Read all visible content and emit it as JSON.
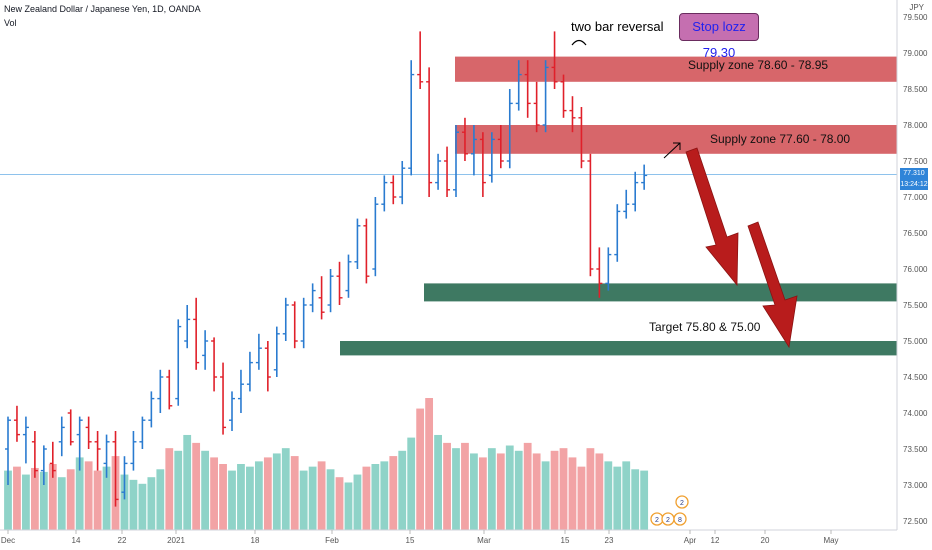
{
  "header": {
    "symbol_title": "New Zealand Dollar / Japanese Yen, 1D, OANDA",
    "volume_label": "Vol",
    "currency": "JPY"
  },
  "price_tag": {
    "price": "77.310",
    "countdown": "13:24:12"
  },
  "annotations": {
    "stop_loss": "Stop lozz 79.30",
    "two_bar_reversal": "two bar reversal",
    "supply_zone_upper": "Supply zone 78.60 - 78.95",
    "supply_zone_lower": "Supply zone 77.60 - 78.00",
    "target": "Target 75.80 & 75.00"
  },
  "event_markers": [
    "2",
    "2",
    "8",
    "2"
  ],
  "colors": {
    "up_bar": "#2a7bd0",
    "down_bar": "#e0202a",
    "vol_up": "#8fd3c8",
    "vol_down": "#f2a3a5",
    "supply_zone": "#cc3b40",
    "target_zone": "#2e6e55",
    "arrow": "#b81c1c",
    "price_line": "#4a9ee0"
  },
  "chart_data": {
    "type": "ohlc_bar",
    "y_axis": {
      "ticks": [
        72.5,
        73.0,
        73.5,
        74.0,
        74.5,
        75.0,
        75.5,
        76.0,
        76.5,
        77.0,
        77.5,
        78.0,
        78.5,
        79.0,
        79.5
      ],
      "tick_labels": [
        "72.500",
        "73.000",
        "73.500",
        "74.000",
        "74.500",
        "75.000",
        "75.500",
        "76.000",
        "76.500",
        "77.000",
        "77.500",
        "78.000",
        "78.500",
        "79.000",
        "79.500"
      ],
      "ylim": [
        72.3,
        79.65
      ]
    },
    "x_axis": {
      "labels": [
        "Dec",
        "14",
        "22",
        "2021",
        "18",
        "Feb",
        "15",
        "Mar",
        "15",
        "23",
        "Apr",
        "12",
        "20",
        "May"
      ]
    },
    "bars": [
      {
        "o": 73.5,
        "h": 73.95,
        "l": 73.0,
        "c": 73.9,
        "v": 0.45
      },
      {
        "o": 73.9,
        "h": 74.1,
        "l": 73.6,
        "c": 73.7,
        "v": 0.48
      },
      {
        "o": 73.7,
        "h": 73.95,
        "l": 73.3,
        "c": 73.8,
        "v": 0.42
      },
      {
        "o": 73.6,
        "h": 73.75,
        "l": 73.1,
        "c": 73.2,
        "v": 0.47
      },
      {
        "o": 73.2,
        "h": 73.55,
        "l": 73.0,
        "c": 73.5,
        "v": 0.44
      },
      {
        "o": 73.3,
        "h": 73.6,
        "l": 73.1,
        "c": 73.2,
        "v": 0.5
      },
      {
        "o": 73.6,
        "h": 73.95,
        "l": 73.4,
        "c": 73.8,
        "v": 0.4
      },
      {
        "o": 74.0,
        "h": 74.05,
        "l": 73.55,
        "c": 73.6,
        "v": 0.46
      },
      {
        "o": 73.7,
        "h": 73.95,
        "l": 73.2,
        "c": 73.9,
        "v": 0.55
      },
      {
        "o": 73.8,
        "h": 73.95,
        "l": 73.5,
        "c": 73.6,
        "v": 0.52
      },
      {
        "o": 73.6,
        "h": 73.75,
        "l": 73.2,
        "c": 73.5,
        "v": 0.45
      },
      {
        "o": 73.3,
        "h": 73.7,
        "l": 73.1,
        "c": 73.6,
        "v": 0.48
      },
      {
        "o": 73.6,
        "h": 73.75,
        "l": 72.7,
        "c": 72.8,
        "v": 0.56
      },
      {
        "o": 72.9,
        "h": 73.4,
        "l": 72.8,
        "c": 73.3,
        "v": 0.42
      },
      {
        "o": 73.3,
        "h": 73.75,
        "l": 73.2,
        "c": 73.6,
        "v": 0.38
      },
      {
        "o": 73.6,
        "h": 73.95,
        "l": 73.5,
        "c": 73.9,
        "v": 0.35
      },
      {
        "o": 73.9,
        "h": 74.3,
        "l": 73.8,
        "c": 74.2,
        "v": 0.4
      },
      {
        "o": 74.2,
        "h": 74.6,
        "l": 74.0,
        "c": 74.5,
        "v": 0.46
      },
      {
        "o": 74.5,
        "h": 74.6,
        "l": 74.05,
        "c": 74.1,
        "v": 0.62
      },
      {
        "o": 74.2,
        "h": 75.3,
        "l": 74.1,
        "c": 75.2,
        "v": 0.6
      },
      {
        "o": 75.0,
        "h": 75.5,
        "l": 74.9,
        "c": 75.3,
        "v": 0.72
      },
      {
        "o": 75.3,
        "h": 75.6,
        "l": 74.6,
        "c": 74.7,
        "v": 0.66
      },
      {
        "o": 74.8,
        "h": 75.15,
        "l": 74.6,
        "c": 75.0,
        "v": 0.6
      },
      {
        "o": 75.0,
        "h": 75.05,
        "l": 74.3,
        "c": 74.5,
        "v": 0.55
      },
      {
        "o": 74.5,
        "h": 74.7,
        "l": 73.7,
        "c": 73.8,
        "v": 0.5
      },
      {
        "o": 73.9,
        "h": 74.3,
        "l": 73.75,
        "c": 74.2,
        "v": 0.45
      },
      {
        "o": 74.2,
        "h": 74.6,
        "l": 74.0,
        "c": 74.4,
        "v": 0.5
      },
      {
        "o": 74.4,
        "h": 74.85,
        "l": 74.3,
        "c": 74.7,
        "v": 0.48
      },
      {
        "o": 74.7,
        "h": 75.1,
        "l": 74.6,
        "c": 74.9,
        "v": 0.52
      },
      {
        "o": 74.9,
        "h": 75.0,
        "l": 74.3,
        "c": 74.5,
        "v": 0.55
      },
      {
        "o": 74.6,
        "h": 75.2,
        "l": 74.5,
        "c": 75.1,
        "v": 0.58
      },
      {
        "o": 75.1,
        "h": 75.6,
        "l": 75.0,
        "c": 75.5,
        "v": 0.62
      },
      {
        "o": 75.5,
        "h": 75.55,
        "l": 74.9,
        "c": 75.0,
        "v": 0.56
      },
      {
        "o": 75.0,
        "h": 75.6,
        "l": 74.9,
        "c": 75.5,
        "v": 0.45
      },
      {
        "o": 75.5,
        "h": 75.8,
        "l": 75.4,
        "c": 75.7,
        "v": 0.48
      },
      {
        "o": 75.6,
        "h": 75.9,
        "l": 75.3,
        "c": 75.4,
        "v": 0.52
      },
      {
        "o": 75.5,
        "h": 76.0,
        "l": 75.4,
        "c": 75.9,
        "v": 0.46
      },
      {
        "o": 75.9,
        "h": 76.1,
        "l": 75.5,
        "c": 75.6,
        "v": 0.4
      },
      {
        "o": 75.7,
        "h": 76.2,
        "l": 75.6,
        "c": 76.1,
        "v": 0.36
      },
      {
        "o": 76.1,
        "h": 76.7,
        "l": 76.0,
        "c": 76.6,
        "v": 0.42
      },
      {
        "o": 76.6,
        "h": 76.7,
        "l": 75.8,
        "c": 75.9,
        "v": 0.48
      },
      {
        "o": 76.0,
        "h": 77.0,
        "l": 75.9,
        "c": 76.9,
        "v": 0.5
      },
      {
        "o": 76.9,
        "h": 77.3,
        "l": 76.8,
        "c": 77.2,
        "v": 0.52
      },
      {
        "o": 77.2,
        "h": 77.3,
        "l": 76.9,
        "c": 77.0,
        "v": 0.56
      },
      {
        "o": 77.0,
        "h": 77.5,
        "l": 76.9,
        "c": 77.4,
        "v": 0.6
      },
      {
        "o": 77.4,
        "h": 78.9,
        "l": 77.3,
        "c": 78.7,
        "v": 0.7
      },
      {
        "o": 78.7,
        "h": 79.3,
        "l": 78.5,
        "c": 78.6,
        "v": 0.92
      },
      {
        "o": 78.6,
        "h": 78.8,
        "l": 77.0,
        "c": 77.2,
        "v": 1.0
      },
      {
        "o": 77.2,
        "h": 77.6,
        "l": 77.1,
        "c": 77.5,
        "v": 0.72
      },
      {
        "o": 77.5,
        "h": 77.7,
        "l": 77.0,
        "c": 77.1,
        "v": 0.66
      },
      {
        "o": 77.1,
        "h": 78.0,
        "l": 77.0,
        "c": 77.9,
        "v": 0.62
      },
      {
        "o": 77.9,
        "h": 78.1,
        "l": 77.5,
        "c": 77.6,
        "v": 0.66
      },
      {
        "o": 77.6,
        "h": 78.0,
        "l": 77.3,
        "c": 77.8,
        "v": 0.58
      },
      {
        "o": 77.8,
        "h": 77.9,
        "l": 77.0,
        "c": 77.2,
        "v": 0.55
      },
      {
        "o": 77.3,
        "h": 77.9,
        "l": 77.2,
        "c": 77.8,
        "v": 0.62
      },
      {
        "o": 77.8,
        "h": 78.0,
        "l": 77.4,
        "c": 77.5,
        "v": 0.58
      },
      {
        "o": 77.5,
        "h": 78.5,
        "l": 77.4,
        "c": 78.3,
        "v": 0.64
      },
      {
        "o": 78.3,
        "h": 78.9,
        "l": 78.2,
        "c": 78.7,
        "v": 0.6
      },
      {
        "o": 78.7,
        "h": 78.9,
        "l": 78.1,
        "c": 78.3,
        "v": 0.66
      },
      {
        "o": 78.3,
        "h": 78.6,
        "l": 77.9,
        "c": 78.0,
        "v": 0.58
      },
      {
        "o": 78.0,
        "h": 78.9,
        "l": 77.9,
        "c": 78.8,
        "v": 0.52
      },
      {
        "o": 78.8,
        "h": 79.3,
        "l": 78.5,
        "c": 78.6,
        "v": 0.6
      },
      {
        "o": 78.6,
        "h": 78.7,
        "l": 78.1,
        "c": 78.2,
        "v": 0.62
      },
      {
        "o": 78.2,
        "h": 78.4,
        "l": 77.9,
        "c": 78.1,
        "v": 0.55
      },
      {
        "o": 78.1,
        "h": 78.25,
        "l": 77.4,
        "c": 77.5,
        "v": 0.48
      },
      {
        "o": 77.5,
        "h": 77.6,
        "l": 75.9,
        "c": 76.0,
        "v": 0.62
      },
      {
        "o": 76.0,
        "h": 76.3,
        "l": 75.6,
        "c": 75.8,
        "v": 0.58
      },
      {
        "o": 75.8,
        "h": 76.3,
        "l": 75.7,
        "c": 76.2,
        "v": 0.52
      },
      {
        "o": 76.2,
        "h": 76.9,
        "l": 76.1,
        "c": 76.8,
        "v": 0.48
      },
      {
        "o": 76.8,
        "h": 77.1,
        "l": 76.7,
        "c": 76.9,
        "v": 0.52
      },
      {
        "o": 76.9,
        "h": 77.35,
        "l": 76.8,
        "c": 77.2,
        "v": 0.46
      },
      {
        "o": 77.2,
        "h": 77.45,
        "l": 77.1,
        "c": 77.3,
        "v": 0.45
      }
    ],
    "volume_note": "volume values are relative (0-1), no volume axis is printed",
    "zones": [
      {
        "kind": "supply",
        "low": 78.6,
        "high": 78.95
      },
      {
        "kind": "supply",
        "low": 77.6,
        "high": 78.0
      },
      {
        "kind": "target",
        "low": 75.55,
        "high": 75.8
      },
      {
        "kind": "target",
        "low": 74.8,
        "high": 75.0
      }
    ],
    "last_price": 77.31,
    "grid": false,
    "legend": "none"
  }
}
